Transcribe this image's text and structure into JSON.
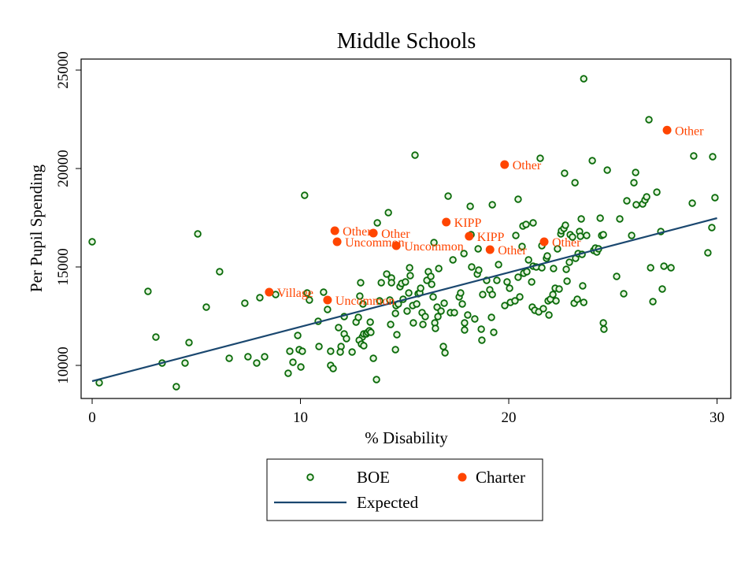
{
  "chart_data": {
    "type": "scatter",
    "title": "Middle Schools",
    "xlabel": "% Disability",
    "ylabel": "Per Pupil Spending",
    "xlim": [
      -0.53,
      30.66
    ],
    "ylim": [
      8320,
      25560
    ],
    "xticks": [
      0,
      10,
      20,
      30
    ],
    "yticks": [
      10000,
      15000,
      20000,
      25000
    ],
    "grid": false,
    "legend_placement": "bottom",
    "colors": {
      "boe": "#0a6b0a",
      "boe_fill": "#e8f5e0",
      "charter": "#ff4500",
      "label": "#ff4500",
      "expected": "#1a476f"
    },
    "legend": [
      {
        "key": "boe",
        "label": "BOE"
      },
      {
        "key": "charter",
        "label": "Charter"
      },
      {
        "key": "expected",
        "label": "Expected"
      }
    ],
    "expected_line": [
      [
        0,
        9200
      ],
      [
        30,
        17480
      ]
    ],
    "charter": [
      {
        "x": 27.6,
        "y": 21950,
        "label": "Other"
      },
      {
        "x": 19.8,
        "y": 20200,
        "label": "Other"
      },
      {
        "x": 17.0,
        "y": 17280,
        "label": "KIPP"
      },
      {
        "x": 18.1,
        "y": 16560,
        "label": "KIPP"
      },
      {
        "x": 11.65,
        "y": 16840,
        "label": "Other"
      },
      {
        "x": 11.76,
        "y": 16280,
        "label": "Uncommon"
      },
      {
        "x": 13.5,
        "y": 16720,
        "label": "Other"
      },
      {
        "x": 14.6,
        "y": 16080,
        "label": "Uncommon"
      },
      {
        "x": 19.1,
        "y": 15880,
        "label": "Other"
      },
      {
        "x": 21.7,
        "y": 16280,
        "label": "Other"
      },
      {
        "x": 8.5,
        "y": 13720,
        "label": "Village"
      },
      {
        "x": 11.3,
        "y": 13320,
        "label": "Uncommon"
      }
    ],
    "boe": [
      [
        0.0,
        16280
      ],
      [
        0.34,
        9120
      ],
      [
        2.68,
        13760
      ],
      [
        3.06,
        11440
      ],
      [
        3.36,
        10120
      ],
      [
        4.04,
        8920
      ],
      [
        4.46,
        10120
      ],
      [
        4.65,
        11160
      ],
      [
        5.07,
        16680
      ],
      [
        5.48,
        12960
      ],
      [
        6.12,
        14760
      ],
      [
        6.58,
        10360
      ],
      [
        7.33,
        13160
      ],
      [
        7.48,
        10440
      ],
      [
        7.9,
        10120
      ],
      [
        8.05,
        13440
      ],
      [
        8.28,
        10440
      ],
      [
        8.81,
        13600
      ],
      [
        9.41,
        9600
      ],
      [
        9.49,
        10720
      ],
      [
        9.64,
        10160
      ],
      [
        9.94,
        10800
      ],
      [
        9.87,
        11520
      ],
      [
        10.02,
        9920
      ],
      [
        10.09,
        10720
      ],
      [
        10.2,
        18640
      ],
      [
        10.32,
        13680
      ],
      [
        10.43,
        13320
      ],
      [
        10.85,
        12240
      ],
      [
        10.89,
        10960
      ],
      [
        11.11,
        13720
      ],
      [
        11.3,
        12840
      ],
      [
        11.45,
        10000
      ],
      [
        11.45,
        10720
      ],
      [
        11.57,
        9840
      ],
      [
        11.83,
        11920
      ],
      [
        11.95,
        10960
      ],
      [
        11.91,
        10680
      ],
      [
        12.1,
        11600
      ],
      [
        12.21,
        11360
      ],
      [
        12.1,
        12480
      ],
      [
        12.48,
        10680
      ],
      [
        12.67,
        12200
      ],
      [
        12.78,
        12440
      ],
      [
        12.89,
        14200
      ],
      [
        12.85,
        13520
      ],
      [
        13.0,
        13120
      ],
      [
        12.97,
        11440
      ],
      [
        13.04,
        11600
      ],
      [
        13.16,
        11600
      ],
      [
        13.23,
        11680
      ],
      [
        13.31,
        11760
      ],
      [
        13.38,
        11680
      ],
      [
        12.82,
        11280
      ],
      [
        12.93,
        11080
      ],
      [
        13.04,
        11000
      ],
      [
        13.35,
        12200
      ],
      [
        13.5,
        10360
      ],
      [
        13.65,
        9280
      ],
      [
        13.69,
        17240
      ],
      [
        13.8,
        13280
      ],
      [
        13.88,
        14200
      ],
      [
        14.14,
        14640
      ],
      [
        14.22,
        17760
      ],
      [
        14.37,
        14440
      ],
      [
        14.37,
        14200
      ],
      [
        14.29,
        13320
      ],
      [
        14.56,
        12640
      ],
      [
        14.56,
        10800
      ],
      [
        14.63,
        11560
      ],
      [
        14.33,
        12080
      ],
      [
        14.59,
        13040
      ],
      [
        14.7,
        13120
      ],
      [
        14.78,
        14000
      ],
      [
        14.86,
        14160
      ],
      [
        14.93,
        13360
      ],
      [
        15.04,
        14240
      ],
      [
        15.12,
        12760
      ],
      [
        15.2,
        13680
      ],
      [
        15.24,
        14960
      ],
      [
        15.27,
        14560
      ],
      [
        15.39,
        13040
      ],
      [
        15.42,
        12160
      ],
      [
        15.5,
        20680
      ],
      [
        15.58,
        13120
      ],
      [
        15.65,
        13640
      ],
      [
        15.73,
        13680
      ],
      [
        15.77,
        13920
      ],
      [
        15.84,
        12680
      ],
      [
        15.88,
        12080
      ],
      [
        15.99,
        12480
      ],
      [
        16.07,
        14320
      ],
      [
        16.14,
        14760
      ],
      [
        16.26,
        14520
      ],
      [
        16.3,
        14120
      ],
      [
        16.37,
        13480
      ],
      [
        16.41,
        16240
      ],
      [
        16.45,
        12160
      ],
      [
        16.48,
        11880
      ],
      [
        16.56,
        12960
      ],
      [
        16.6,
        12480
      ],
      [
        16.64,
        14920
      ],
      [
        16.75,
        12760
      ],
      [
        16.86,
        10960
      ],
      [
        16.9,
        13160
      ],
      [
        16.94,
        10640
      ],
      [
        17.09,
        18600
      ],
      [
        17.2,
        12680
      ],
      [
        17.32,
        15360
      ],
      [
        17.39,
        12680
      ],
      [
        17.62,
        13480
      ],
      [
        17.69,
        13680
      ],
      [
        17.77,
        13120
      ],
      [
        17.85,
        15680
      ],
      [
        17.88,
        12160
      ],
      [
        17.88,
        11800
      ],
      [
        18.03,
        12560
      ],
      [
        18.15,
        18080
      ],
      [
        18.19,
        16640
      ],
      [
        18.22,
        15000
      ],
      [
        18.37,
        12360
      ],
      [
        18.49,
        14640
      ],
      [
        18.56,
        14840
      ],
      [
        18.53,
        15920
      ],
      [
        18.68,
        11840
      ],
      [
        18.71,
        11280
      ],
      [
        18.75,
        13600
      ],
      [
        18.94,
        14320
      ],
      [
        19.09,
        13840
      ],
      [
        19.17,
        12440
      ],
      [
        19.21,
        13600
      ],
      [
        19.21,
        18160
      ],
      [
        19.28,
        11680
      ],
      [
        19.43,
        14320
      ],
      [
        19.51,
        15120
      ],
      [
        19.81,
        13040
      ],
      [
        19.92,
        14240
      ],
      [
        20.04,
        13920
      ],
      [
        20.08,
        13200
      ],
      [
        20.3,
        13280
      ],
      [
        20.34,
        16600
      ],
      [
        20.45,
        18440
      ],
      [
        20.45,
        14480
      ],
      [
        20.53,
        13480
      ],
      [
        20.64,
        16040
      ],
      [
        20.68,
        17080
      ],
      [
        20.72,
        14680
      ],
      [
        20.83,
        17160
      ],
      [
        20.87,
        14760
      ],
      [
        20.95,
        15360
      ],
      [
        21.1,
        14240
      ],
      [
        21.13,
        12960
      ],
      [
        21.17,
        15040
      ],
      [
        21.17,
        17240
      ],
      [
        21.25,
        12800
      ],
      [
        21.32,
        15000
      ],
      [
        21.51,
        20520
      ],
      [
        21.44,
        12720
      ],
      [
        21.59,
        14960
      ],
      [
        21.59,
        16080
      ],
      [
        21.66,
        12880
      ],
      [
        21.81,
        15440
      ],
      [
        21.85,
        15560
      ],
      [
        21.89,
        13280
      ],
      [
        21.93,
        12560
      ],
      [
        22.0,
        13360
      ],
      [
        22.12,
        13600
      ],
      [
        22.15,
        14920
      ],
      [
        22.23,
        13920
      ],
      [
        22.27,
        13280
      ],
      [
        22.34,
        15920
      ],
      [
        22.42,
        13880
      ],
      [
        22.5,
        16680
      ],
      [
        22.53,
        16840
      ],
      [
        22.68,
        19760
      ],
      [
        22.65,
        16960
      ],
      [
        22.72,
        17120
      ],
      [
        22.76,
        14880
      ],
      [
        22.8,
        14280
      ],
      [
        22.91,
        15240
      ],
      [
        22.95,
        16640
      ],
      [
        23.06,
        16520
      ],
      [
        23.14,
        13160
      ],
      [
        23.18,
        19280
      ],
      [
        23.21,
        15440
      ],
      [
        23.29,
        13360
      ],
      [
        23.33,
        15680
      ],
      [
        23.4,
        16800
      ],
      [
        23.48,
        17440
      ],
      [
        23.44,
        16560
      ],
      [
        23.52,
        15640
      ],
      [
        23.55,
        14040
      ],
      [
        23.6,
        24560
      ],
      [
        23.6,
        13200
      ],
      [
        23.74,
        16600
      ],
      [
        24.01,
        20400
      ],
      [
        24.08,
        15840
      ],
      [
        24.16,
        15960
      ],
      [
        24.23,
        15760
      ],
      [
        24.31,
        15920
      ],
      [
        24.39,
        17480
      ],
      [
        24.46,
        16600
      ],
      [
        24.54,
        16640
      ],
      [
        24.54,
        12160
      ],
      [
        24.57,
        11840
      ],
      [
        24.73,
        19920
      ],
      [
        25.18,
        14520
      ],
      [
        25.33,
        17440
      ],
      [
        25.52,
        13640
      ],
      [
        25.67,
        18360
      ],
      [
        25.9,
        16600
      ],
      [
        26.01,
        19280
      ],
      [
        26.09,
        19800
      ],
      [
        26.12,
        18160
      ],
      [
        26.43,
        18200
      ],
      [
        26.54,
        18400
      ],
      [
        26.62,
        18560
      ],
      [
        26.73,
        22480
      ],
      [
        26.81,
        14960
      ],
      [
        26.92,
        13240
      ],
      [
        27.11,
        18800
      ],
      [
        27.3,
        16800
      ],
      [
        27.37,
        13880
      ],
      [
        27.45,
        15040
      ],
      [
        27.79,
        14960
      ],
      [
        28.81,
        18240
      ],
      [
        28.88,
        20640
      ],
      [
        29.56,
        15720
      ],
      [
        29.75,
        17000
      ],
      [
        29.79,
        20600
      ],
      [
        29.9,
        18520
      ]
    ]
  }
}
